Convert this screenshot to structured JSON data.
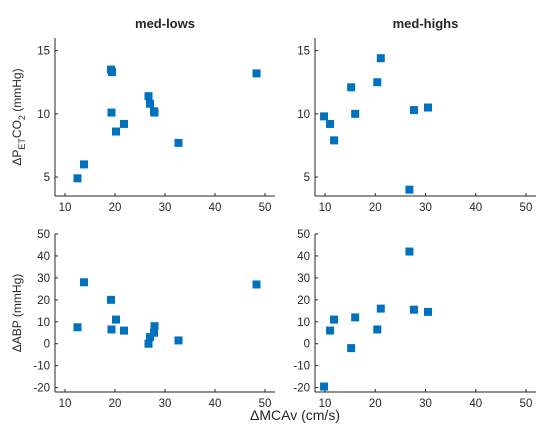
{
  "figure": {
    "xlabel": "ΔMCAv (cm/s)"
  },
  "chart_data": [
    {
      "type": "scatter",
      "title": "med-lows",
      "ylabel": "ΔP",
      "ylabel_sub": "ET",
      "ylabel_mid": "CO",
      "ylabel_sub2": "2",
      "ylabel_tail": " (mmHg)",
      "xlim": [
        8,
        52
      ],
      "ylim": [
        3.5,
        16
      ],
      "xticks": [
        10,
        20,
        30,
        40,
        50
      ],
      "yticks": [
        5,
        10,
        15
      ],
      "marker_color": "#0072BD",
      "x": [
        12.5,
        13.8,
        19.2,
        19.4,
        19.3,
        20.2,
        21.8,
        26.7,
        27.0,
        27.8,
        27.9,
        32.7,
        48.3
      ],
      "y": [
        4.9,
        6.0,
        13.5,
        13.3,
        10.1,
        8.6,
        9.2,
        11.4,
        10.8,
        10.2,
        10.1,
        7.7,
        13.2
      ]
    },
    {
      "type": "scatter",
      "title": "med-highs",
      "xlim": [
        8,
        52
      ],
      "ylim": [
        3.5,
        16
      ],
      "xticks": [
        10,
        20,
        30,
        40,
        50
      ],
      "yticks": [
        5,
        10,
        15
      ],
      "marker_color": "#0072BD",
      "x": [
        9.8,
        11.0,
        11.8,
        15.2,
        16.0,
        20.4,
        21.1,
        26.8,
        27.7,
        30.5
      ],
      "y": [
        9.8,
        9.2,
        7.9,
        12.1,
        10.0,
        12.5,
        14.4,
        4.0,
        10.3,
        10.5
      ]
    },
    {
      "type": "scatter",
      "ylabel": "ΔABP (mmHg)",
      "xlim": [
        8,
        52
      ],
      "ylim": [
        -22,
        50
      ],
      "xticks": [
        10,
        20,
        30,
        40,
        50
      ],
      "yticks": [
        -20,
        -10,
        0,
        10,
        20,
        30,
        40,
        50
      ],
      "marker_color": "#0072BD",
      "x": [
        12.5,
        13.8,
        19.2,
        19.3,
        20.2,
        21.8,
        26.7,
        27.0,
        27.8,
        27.9,
        32.7,
        48.3
      ],
      "y": [
        7.5,
        28.0,
        20.0,
        6.5,
        11.0,
        6.0,
        0.0,
        3.0,
        5.0,
        8.0,
        1.5,
        27.0
      ]
    },
    {
      "type": "scatter",
      "xlim": [
        8,
        52
      ],
      "ylim": [
        -22,
        50
      ],
      "xticks": [
        10,
        20,
        30,
        40,
        50
      ],
      "yticks": [
        -20,
        -10,
        0,
        10,
        20,
        30,
        40,
        50
      ],
      "marker_color": "#0072BD",
      "x": [
        9.8,
        11.0,
        11.8,
        15.2,
        16.0,
        20.4,
        21.1,
        26.8,
        27.7,
        30.5
      ],
      "y": [
        -19.5,
        6.0,
        11.0,
        -2.0,
        12.0,
        6.5,
        16.0,
        42.0,
        15.5,
        14.5
      ]
    }
  ]
}
